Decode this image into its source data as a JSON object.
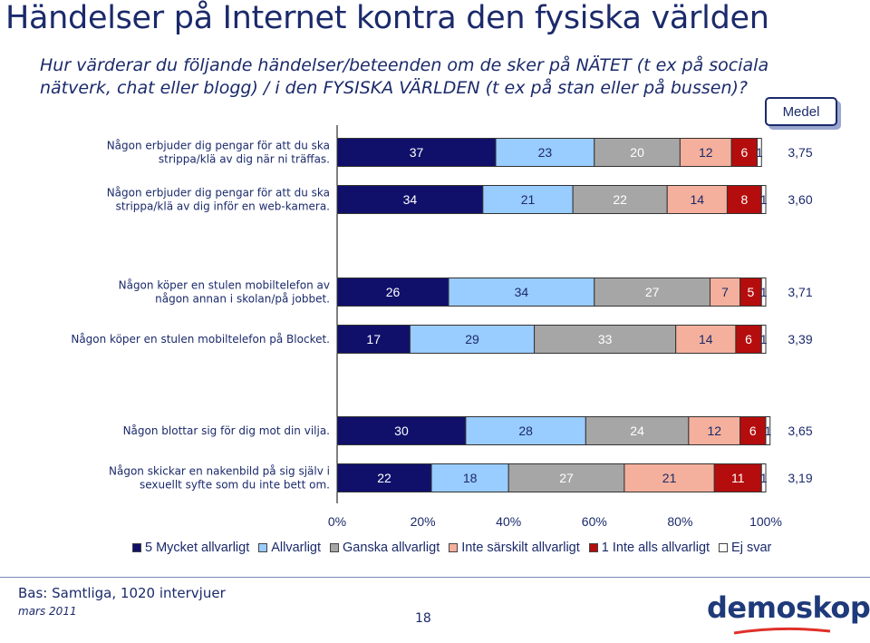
{
  "header": {
    "title": "Händelser på Internet kontra den fysiska världen",
    "subtitle": "Hur värderar du följande händelser/beteenden om de sker på NÄTET (t ex på sociala nätverk, chat eller blogg) / i den FYSISKA VÄRLDEN (t ex på stan eller på bussen)?"
  },
  "medel_label": "Medel",
  "chart_data": {
    "type": "bar",
    "orientation": "horizontal-stacked-100",
    "categories": [
      "Någon erbjuder dig pengar för att du ska strippa/klä av dig när ni träffas.",
      "Någon erbjuder dig pengar för att du ska strippa/klä av dig inför en web-kamera.",
      "Någon köper en stulen mobiltelefon av någon annan i skolan/på jobbet.",
      "Någon köper en stulen mobiltelefon på Blocket.",
      "Någon blottar sig för dig mot din vilja.",
      "Någon skickar en nakenbild på sig själv i sexuellt syfte som du inte bett om."
    ],
    "label_lines": [
      [
        "Någon erbjuder dig pengar för att du ska",
        "strippa/klä av dig när ni träffas."
      ],
      [
        "Någon erbjuder dig pengar för att du ska",
        "strippa/klä av dig inför en web-kamera."
      ],
      [
        "Någon köper en stulen mobiltelefon av",
        "någon annan i skolan/på jobbet."
      ],
      [
        "Någon köper en stulen mobiltelefon på Blocket."
      ],
      [
        "Någon blottar sig för dig mot din vilja."
      ],
      [
        "Någon skickar en nakenbild på sig själv i",
        "sexuellt syfte som du inte bett om."
      ]
    ],
    "series": [
      {
        "name": "5 Mycket allvarligt",
        "color": "#10106b",
        "text_color": "#ffffff",
        "values": [
          37,
          34,
          26,
          17,
          30,
          22
        ]
      },
      {
        "name": "Allvarligt",
        "color": "#99ccff",
        "text_color": "#1b2a6b",
        "values": [
          23,
          21,
          34,
          29,
          28,
          18
        ]
      },
      {
        "name": "Ganska allvarligt",
        "color": "#a6a6a6",
        "text_color": "#ffffff",
        "values": [
          20,
          22,
          27,
          33,
          24,
          27
        ]
      },
      {
        "name": "Inte särskilt allvarligt",
        "color": "#f4b09c",
        "text_color": "#1b2a6b",
        "values": [
          12,
          14,
          7,
          14,
          12,
          21
        ]
      },
      {
        "name": "1 Inte alls allvarligt",
        "color": "#b50d0d",
        "text_color": "#ffffff",
        "values": [
          6,
          8,
          5,
          6,
          6,
          11
        ]
      },
      {
        "name": "Ej svar",
        "color": "#ffffff",
        "text_color": "#1b2a6b",
        "values": [
          1,
          1,
          1,
          1,
          1,
          1
        ]
      }
    ],
    "medel": [
      "3,75",
      "3,60",
      "3,71",
      "3,39",
      "3,65",
      "3,19"
    ],
    "xlim": [
      0,
      100
    ],
    "xticks": [
      "0%",
      "20%",
      "40%",
      "60%",
      "80%",
      "100%"
    ],
    "legend_position": "bottom"
  },
  "footer": {
    "base": "Bas: Samtliga, 1020 intervjuer",
    "date": "mars 2011",
    "page": "18",
    "logo": "demoskop"
  }
}
